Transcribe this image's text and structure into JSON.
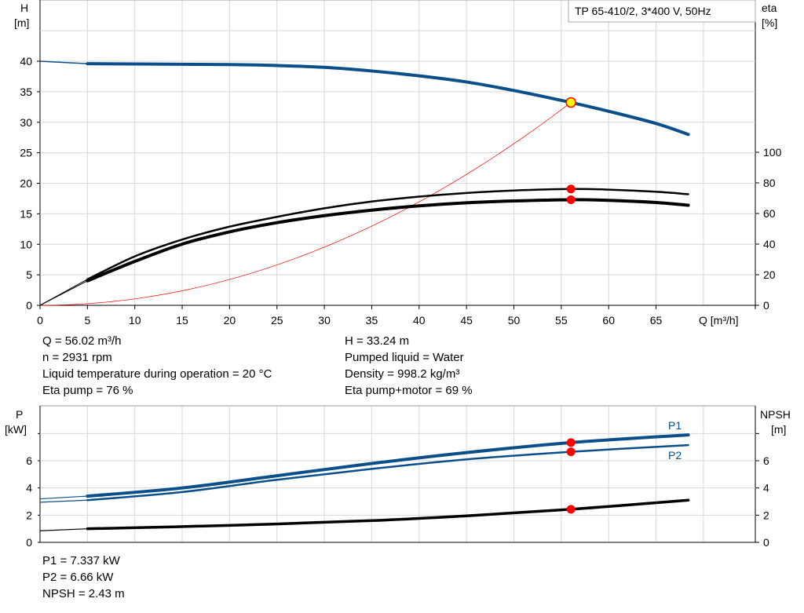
{
  "chart_data": [
    {
      "type": "line",
      "title": "TP 65-410/2, 3*400 V, 50Hz",
      "xlabel": "Q [m³/h]",
      "ylabel_left": [
        "H",
        "[m]"
      ],
      "ylabel_right": [
        "eta",
        "[%]"
      ],
      "xlim": [
        0,
        75
      ],
      "ylim_left": [
        0,
        50
      ],
      "ylim_right": [
        0,
        200
      ],
      "grid": true,
      "x_ticks": [
        "0",
        "5",
        "10",
        "15",
        "20",
        "25",
        "30",
        "35",
        "40",
        "45",
        "50",
        "55",
        "60",
        "65"
      ],
      "y_ticks_left": [
        "0",
        "5",
        "10",
        "15",
        "20",
        "25",
        "30",
        "35",
        "40"
      ],
      "y_ticks_right": [
        "0",
        "20",
        "40",
        "60",
        "80",
        "100"
      ],
      "series": [
        {
          "id": "H",
          "axis": "left",
          "color": "#0b4f8a",
          "x": [
            5,
            10,
            15,
            20,
            25,
            30,
            35,
            40,
            45,
            50,
            56.02,
            60,
            65,
            68.4
          ],
          "y": [
            39.6,
            39.55,
            39.5,
            39.45,
            39.3,
            39.0,
            38.4,
            37.6,
            36.6,
            35.2,
            33.24,
            31.8,
            29.8,
            28.0
          ],
          "extrapolated": {
            "x": [
              0,
              5
            ],
            "y": [
              40,
              39.6
            ]
          }
        },
        {
          "id": "eta-pump",
          "axis": "right",
          "color": "#000000",
          "x": [
            5,
            10,
            15,
            20,
            25,
            30,
            35,
            40,
            45,
            50,
            56.02,
            60,
            65,
            68.4
          ],
          "y": [
            17,
            32,
            43,
            51.4,
            57.8,
            63.4,
            67.8,
            71,
            73.4,
            75,
            76,
            75.6,
            74.2,
            72.6
          ],
          "extrapolated": {
            "x": [
              0,
              5
            ],
            "y": [
              0,
              17
            ]
          }
        },
        {
          "id": "eta-pump-motor",
          "axis": "right",
          "color": "#000000",
          "x": [
            5,
            10,
            15,
            20,
            25,
            30,
            35,
            40,
            45,
            50,
            56.02,
            60,
            65,
            68.4
          ],
          "y": [
            16,
            28.7,
            40,
            48,
            54,
            58.6,
            62.2,
            65,
            67,
            68.2,
            69,
            68.6,
            67.2,
            65.4
          ],
          "extrapolated": {
            "x": [
              0,
              5
            ],
            "y": [
              0,
              16
            ]
          }
        },
        {
          "id": "system-curve",
          "axis": "left",
          "color": "#ff0000",
          "function": "H = 0.010592 * Q^2",
          "x_range": [
            0,
            56.5
          ]
        }
      ],
      "duty_point": {
        "Q": 56.02,
        "H": 33.24,
        "eta_pump": 76,
        "eta_pump_motor": 69,
        "color": "#ffff00"
      }
    },
    {
      "type": "line",
      "xlabel": "",
      "ylabel_left": [
        "P",
        "[kW]"
      ],
      "ylabel_right": [
        "NPSH",
        "[m]"
      ],
      "xlim": [
        0,
        75
      ],
      "ylim_left": [
        0,
        10
      ],
      "ylim_right": [
        0,
        10
      ],
      "grid": true,
      "y_ticks_left": [
        "0",
        "2",
        "4",
        "6"
      ],
      "y_ticks_right": [
        "0",
        "2",
        "4",
        "6"
      ],
      "series": [
        {
          "id": "P1",
          "name": "P1",
          "axis": "left",
          "color": "#0b4f8a",
          "x": [
            5,
            15,
            25,
            35,
            45,
            56.02,
            68.4
          ],
          "y": [
            3.4,
            4.0,
            4.9,
            5.8,
            6.6,
            7.337,
            7.9
          ],
          "extrapolated": {
            "x": [
              0,
              5
            ],
            "y": [
              3.2,
              3.4
            ]
          }
        },
        {
          "id": "P2",
          "name": "P2",
          "axis": "left",
          "color": "#0b4f8a",
          "x": [
            5,
            15,
            25,
            35,
            45,
            56.02,
            68.4
          ],
          "y": [
            3.1,
            3.7,
            4.6,
            5.4,
            6.1,
            6.66,
            7.15
          ],
          "extrapolated": {
            "x": [
              0,
              5
            ],
            "y": [
              2.95,
              3.1
            ]
          }
        },
        {
          "id": "NPSH",
          "axis": "right",
          "color": "#000000",
          "x": [
            5,
            20,
            35,
            45,
            56.02,
            68.4
          ],
          "y": [
            1.0,
            1.25,
            1.6,
            1.95,
            2.43,
            3.1
          ],
          "extrapolated": {
            "x": [
              0,
              5
            ],
            "y": [
              0.85,
              1.0
            ]
          }
        }
      ],
      "duty_point": {
        "Q": 56.02,
        "P1": 7.337,
        "P2": 6.66,
        "NPSH": 2.43
      }
    }
  ],
  "info_top": {
    "left": [
      "Q = 56.02 m³/h",
      "n = 2931 rpm",
      "Liquid temperature during operation = 20 °C",
      "Eta pump = 76 %"
    ],
    "right": [
      "H = 33.24 m",
      "Pumped liquid = Water",
      "Density = 998.2 kg/m³",
      "Eta pump+motor = 69 %"
    ]
  },
  "info_bottom": [
    "P1 = 7.337 kW",
    "P2 = 6.66 kW",
    "NPSH = 2.43 m"
  ],
  "colors": {
    "grid": "#d8d8d8",
    "curve_blue": "#0b4f8a",
    "point_red": "#ff0000"
  }
}
